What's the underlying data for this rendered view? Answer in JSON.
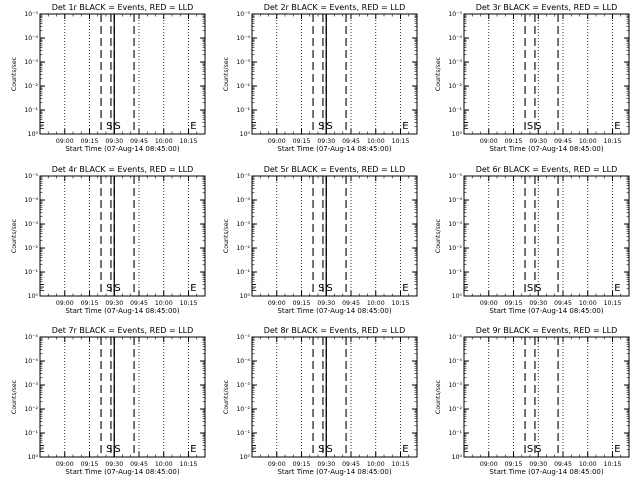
{
  "chart_data": [
    {
      "type": "line",
      "title": "Det 1r BLACK = Events, RED = LLD",
      "xlabel": "Start Time (07-Aug-14 08:45:00)",
      "ylabel": "Counts/sec",
      "x_ticks": [
        "09:00",
        "09:15",
        "09:30",
        "09:45",
        "10:00",
        "10:15"
      ],
      "y_ticks": [
        "10⁰",
        "10⁻¹",
        "10⁻²",
        "10⁻³",
        "10⁻⁴",
        "10⁻⁵"
      ],
      "y_scale": "log",
      "solid_lines": [
        "09:30"
      ],
      "dashed_lines": [
        "09:22",
        "09:28",
        "09:30",
        "09:42"
      ],
      "dotted_lines": [
        "09:00",
        "09:15",
        "09:30",
        "09:45",
        "10:00",
        "10:15"
      ],
      "markers": [
        {
          "text": "E",
          "x": "08:46"
        },
        {
          "text": "S",
          "x": "09:27"
        },
        {
          "text": "S",
          "x": "09:32"
        },
        {
          "text": "E",
          "x": "10:18"
        }
      ]
    },
    {
      "type": "line",
      "title": "Det 2r BLACK = Events, RED = LLD",
      "xlabel": "Start Time (07-Aug-14 08:45:00)",
      "ylabel": "Counts/sec",
      "x_ticks": [
        "09:00",
        "09:15",
        "09:30",
        "09:45",
        "10:00",
        "10:15"
      ],
      "y_ticks": [
        "10⁰",
        "10⁻¹",
        "10⁻²",
        "10⁻³",
        "10⁻⁴",
        "10⁻⁵"
      ],
      "y_scale": "log",
      "solid_lines": [
        "09:30"
      ],
      "dashed_lines": [
        "09:22",
        "09:28",
        "09:30",
        "09:42"
      ],
      "dotted_lines": [
        "09:00",
        "09:15",
        "09:30",
        "09:45",
        "10:00",
        "10:15"
      ],
      "markers": [
        {
          "text": "E",
          "x": "08:46"
        },
        {
          "text": "S",
          "x": "09:27"
        },
        {
          "text": "S",
          "x": "09:32"
        },
        {
          "text": "E",
          "x": "10:18"
        }
      ]
    },
    {
      "type": "line",
      "title": "Det 3r BLACK = Events, RED = LLD",
      "xlabel": "Start Time (07-Aug-14 08:45:00)",
      "ylabel": "Counts/sec",
      "x_ticks": [
        "09:00",
        "09:15",
        "09:30",
        "09:45",
        "10:00",
        "10:15"
      ],
      "y_ticks": [
        "10⁰",
        "10⁻¹",
        "10⁻²",
        "10⁻³",
        "10⁻⁴",
        "10⁻⁵"
      ],
      "y_scale": "log",
      "solid_lines": [],
      "dashed_lines": [
        "09:22",
        "09:28",
        "09:42"
      ],
      "dotted_lines": [
        "09:00",
        "09:15",
        "09:30",
        "09:45",
        "10:00",
        "10:15"
      ],
      "markers": [
        {
          "text": "E",
          "x": "08:46"
        },
        {
          "text": "S",
          "x": "09:25"
        },
        {
          "text": "S",
          "x": "09:30"
        },
        {
          "text": "E",
          "x": "10:18"
        }
      ]
    },
    {
      "type": "line",
      "title": "Det 4r BLACK = Events, RED = LLD",
      "xlabel": "Start Time (07-Aug-14 08:45:00)",
      "ylabel": "Counts/sec",
      "x_ticks": [
        "09:00",
        "09:15",
        "09:30",
        "09:45",
        "10:00",
        "10:15"
      ],
      "y_ticks": [
        "10⁰",
        "10⁻¹",
        "10⁻²",
        "10⁻³",
        "10⁻⁴",
        "10⁻⁵"
      ],
      "y_scale": "log",
      "solid_lines": [
        "09:30"
      ],
      "dashed_lines": [
        "09:22",
        "09:28",
        "09:30",
        "09:42"
      ],
      "dotted_lines": [
        "09:00",
        "09:15",
        "09:30",
        "09:45",
        "10:00",
        "10:15"
      ],
      "markers": [
        {
          "text": "E",
          "x": "08:46"
        },
        {
          "text": "S",
          "x": "09:27"
        },
        {
          "text": "S",
          "x": "09:32"
        },
        {
          "text": "E",
          "x": "10:18"
        }
      ]
    },
    {
      "type": "line",
      "title": "Det 5r BLACK = Events, RED = LLD",
      "xlabel": "Start Time (07-Aug-14 08:45:00)",
      "ylabel": "Counts/sec",
      "x_ticks": [
        "09:00",
        "09:15",
        "09:30",
        "09:45",
        "10:00",
        "10:15"
      ],
      "y_ticks": [
        "10⁰",
        "10⁻¹",
        "10⁻²",
        "10⁻³",
        "10⁻⁴",
        "10⁻⁵"
      ],
      "y_scale": "log",
      "solid_lines": [
        "09:30"
      ],
      "dashed_lines": [
        "09:22",
        "09:28",
        "09:30",
        "09:42"
      ],
      "dotted_lines": [
        "09:00",
        "09:15",
        "09:30",
        "09:45",
        "10:00",
        "10:15"
      ],
      "markers": [
        {
          "text": "E",
          "x": "08:46"
        },
        {
          "text": "S",
          "x": "09:27"
        },
        {
          "text": "S",
          "x": "09:32"
        },
        {
          "text": "E",
          "x": "10:18"
        }
      ]
    },
    {
      "type": "line",
      "title": "Det 6r BLACK = Events, RED = LLD",
      "xlabel": "Start Time (07-Aug-14 08:45:00)",
      "ylabel": "Counts/sec",
      "x_ticks": [
        "09:00",
        "09:15",
        "09:30",
        "09:45",
        "10:00",
        "10:15"
      ],
      "y_ticks": [
        "10⁰",
        "10⁻¹",
        "10⁻²",
        "10⁻³",
        "10⁻⁴",
        "10⁻⁵"
      ],
      "y_scale": "log",
      "solid_lines": [],
      "dashed_lines": [
        "09:22",
        "09:28",
        "09:42"
      ],
      "dotted_lines": [
        "09:00",
        "09:15",
        "09:30",
        "09:45",
        "10:00",
        "10:15"
      ],
      "markers": [
        {
          "text": "E",
          "x": "08:46"
        },
        {
          "text": "S",
          "x": "09:25"
        },
        {
          "text": "S",
          "x": "09:30"
        },
        {
          "text": "E",
          "x": "10:18"
        }
      ]
    },
    {
      "type": "line",
      "title": "Det 7r BLACK = Events, RED = LLD",
      "xlabel": "Start Time (07-Aug-14 08:45:00)",
      "ylabel": "Counts/sec",
      "x_ticks": [
        "09:00",
        "09:15",
        "09:30",
        "09:45",
        "10:00",
        "10:15"
      ],
      "y_ticks": [
        "10⁰",
        "10⁻¹",
        "10⁻²",
        "10⁻³",
        "10⁻⁴",
        "10⁻⁵"
      ],
      "y_scale": "log",
      "solid_lines": [
        "09:30"
      ],
      "dashed_lines": [
        "09:22",
        "09:28",
        "09:30",
        "09:42"
      ],
      "dotted_lines": [
        "09:00",
        "09:15",
        "09:30",
        "09:45",
        "10:00",
        "10:15"
      ],
      "markers": [
        {
          "text": "E",
          "x": "08:46"
        },
        {
          "text": "S",
          "x": "09:27"
        },
        {
          "text": "S",
          "x": "09:32"
        },
        {
          "text": "E",
          "x": "10:18"
        }
      ]
    },
    {
      "type": "line",
      "title": "Det 8r BLACK = Events, RED = LLD",
      "xlabel": "Start Time (07-Aug-14 08:45:00)",
      "ylabel": "Counts/sec",
      "x_ticks": [
        "09:00",
        "09:15",
        "09:30",
        "09:45",
        "10:00",
        "10:15"
      ],
      "y_ticks": [
        "10⁰",
        "10⁻¹",
        "10⁻²",
        "10⁻³",
        "10⁻⁴",
        "10⁻⁵"
      ],
      "y_scale": "log",
      "solid_lines": [
        "09:30"
      ],
      "dashed_lines": [
        "09:22",
        "09:28",
        "09:30",
        "09:42"
      ],
      "dotted_lines": [
        "09:00",
        "09:15",
        "09:30",
        "09:45",
        "10:00",
        "10:15"
      ],
      "markers": [
        {
          "text": "E",
          "x": "08:46"
        },
        {
          "text": "S",
          "x": "09:27"
        },
        {
          "text": "S",
          "x": "09:32"
        },
        {
          "text": "E",
          "x": "10:18"
        }
      ]
    },
    {
      "type": "line",
      "title": "Det 9r BLACK = Events, RED = LLD",
      "xlabel": "Start Time (07-Aug-14 08:45:00)",
      "ylabel": "Counts/sec",
      "x_ticks": [
        "09:00",
        "09:15",
        "09:30",
        "09:45",
        "10:00",
        "10:15"
      ],
      "y_ticks": [
        "10⁰",
        "10⁻¹",
        "10⁻²",
        "10⁻³",
        "10⁻⁴",
        "10⁻⁵"
      ],
      "y_scale": "log",
      "solid_lines": [],
      "dashed_lines": [
        "09:22",
        "09:28",
        "09:42"
      ],
      "dotted_lines": [
        "09:00",
        "09:15",
        "09:30",
        "09:45",
        "10:00",
        "10:15"
      ],
      "markers": [
        {
          "text": "E",
          "x": "08:46"
        },
        {
          "text": "S",
          "x": "09:25"
        },
        {
          "text": "S",
          "x": "09:30"
        },
        {
          "text": "E",
          "x": "10:18"
        }
      ]
    }
  ]
}
